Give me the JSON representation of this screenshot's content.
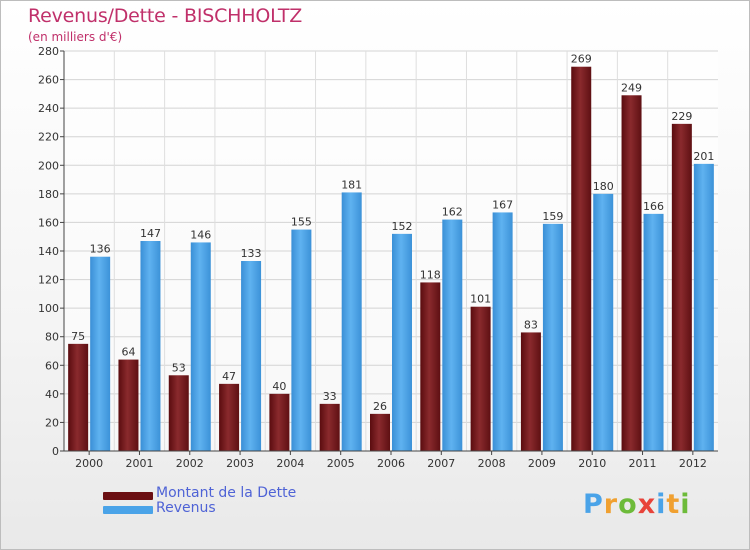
{
  "chart_data": {
    "type": "bar",
    "title": "Revenus/Dette - BISCHHOLTZ",
    "subtitle": "(en milliers d'€)",
    "xlabel": "",
    "ylabel": "",
    "ylim": [
      0,
      280
    ],
    "yticks": [
      0,
      20,
      40,
      60,
      80,
      100,
      120,
      140,
      160,
      180,
      200,
      220,
      240,
      260,
      280
    ],
    "grid": true,
    "categories": [
      "2000",
      "2001",
      "2002",
      "2003",
      "2004",
      "2005",
      "2006",
      "2007",
      "2008",
      "2009",
      "2010",
      "2011",
      "2012"
    ],
    "series": [
      {
        "name": "Montant de la Dette",
        "color": "#7a1f22",
        "values": [
          75,
          64,
          53,
          47,
          40,
          33,
          26,
          118,
          101,
          83,
          269,
          249,
          229
        ]
      },
      {
        "name": "Revenus",
        "color": "#4aa3e8",
        "values": [
          136,
          147,
          146,
          133,
          155,
          181,
          152,
          162,
          167,
          159,
          180,
          166,
          201
        ]
      }
    ],
    "legend_position": "bottom-left"
  },
  "legend": {
    "debt_label": "Montant de la Dette",
    "revenue_label": "Revenus",
    "debt_color": "#6b0f12",
    "revenue_color": "#4aa3e8"
  },
  "logo": {
    "letters": [
      "P",
      "r",
      "o",
      "x",
      "i",
      "t",
      "i"
    ],
    "colors": [
      "#4aa3e8",
      "#f0a030",
      "#6dbb3a",
      "#e8433a",
      "#4aa3e8",
      "#f0a030",
      "#6dbb3a"
    ]
  }
}
